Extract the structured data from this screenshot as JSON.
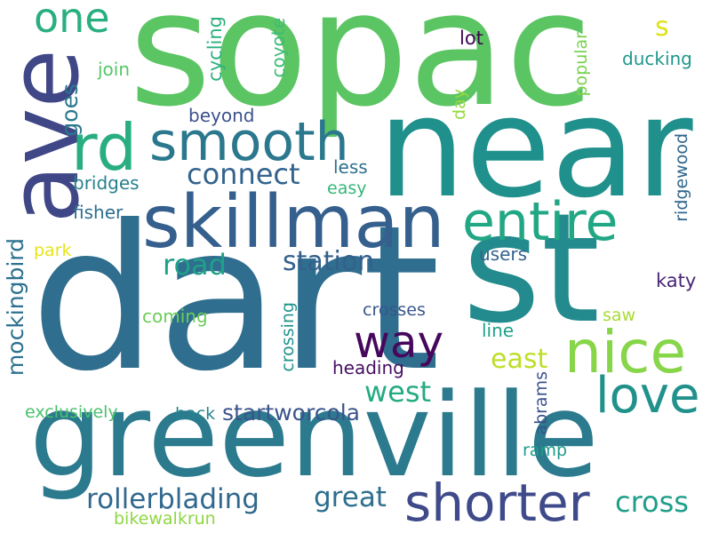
{
  "words": [
    {
      "text": "sopac",
      "color": "#5cc563"
    },
    {
      "text": "dart",
      "color": "#2f6e8e"
    },
    {
      "text": "near",
      "color": "#20908c"
    },
    {
      "text": "st",
      "color": "#238a8d"
    },
    {
      "text": "greenville",
      "color": "#2b7a8e"
    },
    {
      "text": "ave",
      "color": "#404787"
    },
    {
      "text": "skillman",
      "color": "#355f8d"
    },
    {
      "text": "smooth",
      "color": "#2b788e"
    },
    {
      "text": "rd",
      "color": "#28ae80"
    },
    {
      "text": "entire",
      "color": "#22a785"
    },
    {
      "text": "nice",
      "color": "#87d549"
    },
    {
      "text": "love",
      "color": "#21918c"
    },
    {
      "text": "shorter",
      "color": "#3e4a89"
    },
    {
      "text": "one",
      "color": "#29af7f"
    },
    {
      "text": "way",
      "color": "#46085c"
    },
    {
      "text": "connect",
      "color": "#33638d"
    },
    {
      "text": "road",
      "color": "#1fa088"
    },
    {
      "text": "station",
      "color": "#34608d"
    },
    {
      "text": "rollerblading",
      "color": "#31688e"
    },
    {
      "text": "great",
      "color": "#2e6f8e"
    },
    {
      "text": "startworcola",
      "color": "#3a548c"
    },
    {
      "text": "west",
      "color": "#25ab82"
    },
    {
      "text": "east",
      "color": "#bddf26"
    },
    {
      "text": "cross",
      "color": "#1f9e89"
    },
    {
      "text": "goes",
      "color": "#2a788e"
    },
    {
      "text": "mockingbird",
      "color": "#2c718e"
    },
    {
      "text": "s",
      "color": "#dde318"
    },
    {
      "text": "lot",
      "color": "#3e0751"
    },
    {
      "text": "ducking",
      "color": "#1f988b"
    },
    {
      "text": "join",
      "color": "#56c667"
    },
    {
      "text": "cycling",
      "color": "#2cb17e"
    },
    {
      "text": "coyote",
      "color": "#3dbc74"
    },
    {
      "text": "day",
      "color": "#95d840"
    },
    {
      "text": "popular",
      "color": "#7ad151"
    },
    {
      "text": "beyond",
      "color": "#3b528b"
    },
    {
      "text": "katy",
      "color": "#482475"
    },
    {
      "text": "ridgewood",
      "color": "#31678e"
    },
    {
      "text": "less",
      "color": "#2d708e"
    },
    {
      "text": "bridges",
      "color": "#27808e"
    },
    {
      "text": "easy",
      "color": "#35b779"
    },
    {
      "text": "fisher",
      "color": "#2e6e8e"
    },
    {
      "text": "park",
      "color": "#e7e419"
    },
    {
      "text": "users",
      "color": "#33638d"
    },
    {
      "text": "coming",
      "color": "#6ccd5a"
    },
    {
      "text": "crosses",
      "color": "#39568c"
    },
    {
      "text": "saw",
      "color": "#a8db34"
    },
    {
      "text": "crossing",
      "color": "#20938c"
    },
    {
      "text": "line",
      "color": "#1fa187"
    },
    {
      "text": "heading",
      "color": "#471063"
    },
    {
      "text": "exclusively",
      "color": "#4ac16d"
    },
    {
      "text": "back",
      "color": "#26828e"
    },
    {
      "text": "abrams",
      "color": "#3b528b"
    },
    {
      "text": "ramp",
      "color": "#1e9b8a"
    },
    {
      "text": "bikewalkrun",
      "color": "#8fd744"
    }
  ]
}
